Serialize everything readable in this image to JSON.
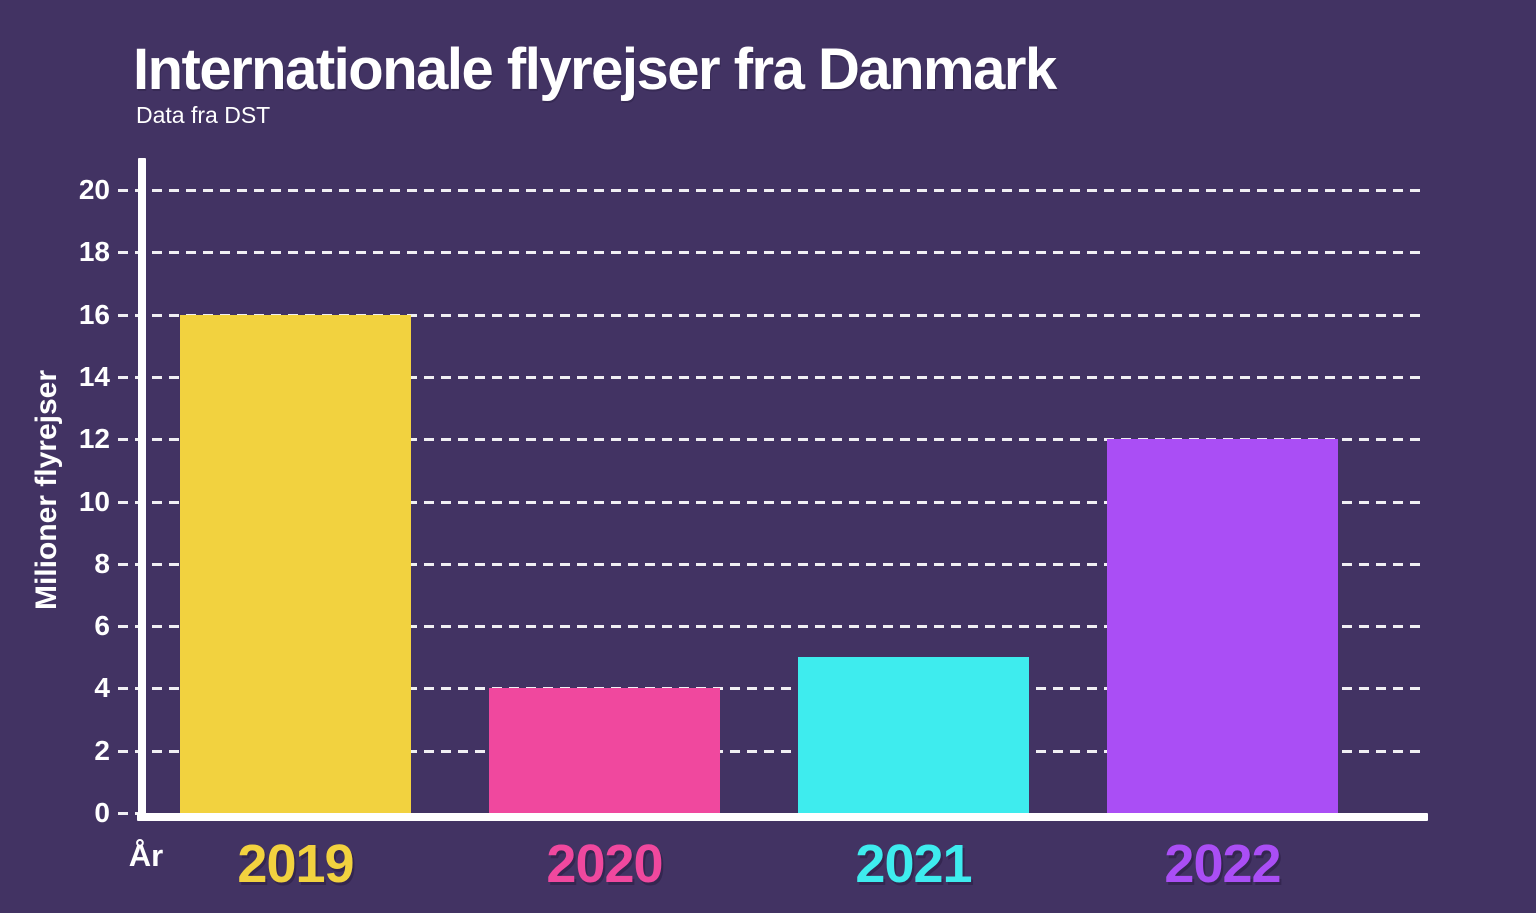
{
  "header": {
    "title": "Internationale flyrejser fra Danmark",
    "subtitle": "Data fra DST"
  },
  "chart_data": {
    "type": "bar",
    "title": "Internationale flyrejser fra Danmark",
    "subtitle": "Data fra DST",
    "categories": [
      "2019",
      "2020",
      "2021",
      "2022"
    ],
    "values": [
      16,
      4,
      5,
      12
    ],
    "bar_colors": [
      "#F2D23F",
      "#F0489E",
      "#3EECEE",
      "#AA4EF5"
    ],
    "xlabel": "År",
    "ylabel": "Milioner flyrejser",
    "ylim": [
      0,
      20
    ],
    "yticks": [
      0,
      2,
      4,
      6,
      8,
      10,
      12,
      14,
      16,
      18,
      20
    ],
    "grid": "dashed horizontal, white",
    "legend_position": "none",
    "colors": {
      "background": "#423363",
      "axis": "#FFFFFF",
      "text": "#FFFFFF"
    }
  }
}
